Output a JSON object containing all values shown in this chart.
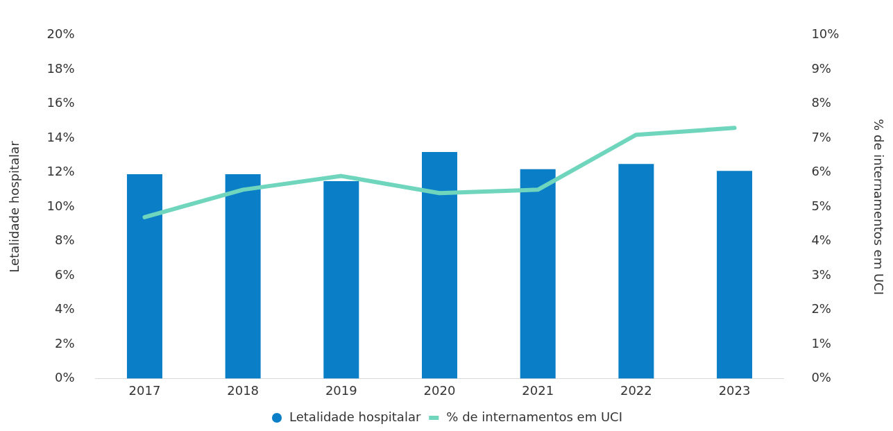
{
  "chart_data": {
    "type": "bar",
    "ylabel": "Letalidade hospitalar",
    "y2label": "% de internamentos em UCI",
    "categories": [
      "2017",
      "2018",
      "2019",
      "2020",
      "2021",
      "2022",
      "2023"
    ],
    "series": [
      {
        "name": "Letalidade hospitalar",
        "color": "#0a7ec6",
        "values": [
          11.9,
          11.9,
          11.5,
          13.2,
          12.2,
          12.5,
          12.1
        ]
      },
      {
        "name": "% de internamentos em UCI",
        "type": "line",
        "axis": "y2",
        "color": "#6fd6bd",
        "values": [
          4.7,
          5.5,
          5.9,
          5.4,
          5.5,
          7.1,
          7.3
        ]
      }
    ],
    "ylim": [
      0,
      20
    ],
    "yticks": [
      {
        "value": 0,
        "label": "0%"
      },
      {
        "value": 2,
        "label": "2%"
      },
      {
        "value": 4,
        "label": "4%"
      },
      {
        "value": 6,
        "label": "6%"
      },
      {
        "value": 8,
        "label": "8%"
      },
      {
        "value": 10,
        "label": "10%"
      },
      {
        "value": 12,
        "label": "12%"
      },
      {
        "value": 14,
        "label": "14%"
      },
      {
        "value": 16,
        "label": "16%"
      },
      {
        "value": 18,
        "label": "18%"
      },
      {
        "value": 20,
        "label": "20%"
      }
    ],
    "y2lim": [
      0,
      10
    ],
    "y2ticks": [
      {
        "value": 0,
        "label": "0%"
      },
      {
        "value": 1,
        "label": "1%"
      },
      {
        "value": 2,
        "label": "2%"
      },
      {
        "value": 3,
        "label": "3%"
      },
      {
        "value": 4,
        "label": "4%"
      },
      {
        "value": 5,
        "label": "5%"
      },
      {
        "value": 6,
        "label": "6%"
      },
      {
        "value": 7,
        "label": "7%"
      },
      {
        "value": 8,
        "label": "8%"
      },
      {
        "value": 9,
        "label": "9%"
      },
      {
        "value": 10,
        "label": "10%"
      }
    ],
    "grid": false,
    "legend": "bottom",
    "marker": "none",
    "line_style": "solid"
  }
}
